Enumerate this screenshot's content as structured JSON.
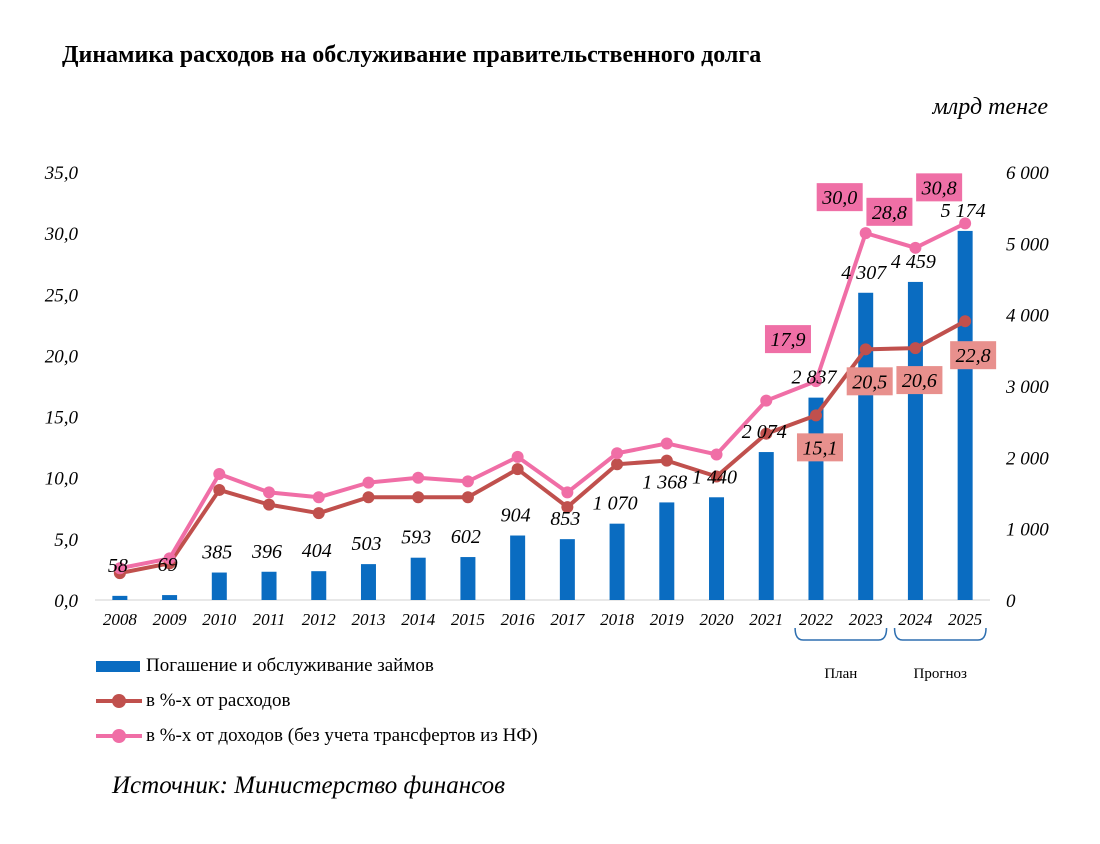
{
  "header": {
    "title": "Динамика расходов на обслуживание правительственного долга",
    "unit": "млрд тенге"
  },
  "chart_data": {
    "type": "bar",
    "categories": [
      "2008",
      "2009",
      "2010",
      "2011",
      "2012",
      "2013",
      "2014",
      "2015",
      "2016",
      "2017",
      "2018",
      "2019",
      "2020",
      "2021",
      "2022",
      "2023",
      "2024",
      "2025"
    ],
    "left_axis": {
      "ticks": [
        "0,0",
        "5,0",
        "10,0",
        "15,0",
        "20,0",
        "25,0",
        "30,0",
        "35,0"
      ],
      "ylim": [
        0,
        35
      ]
    },
    "right_axis": {
      "ticks": [
        "0",
        "1 000",
        "2 000",
        "3 000",
        "4 000",
        "5 000",
        "6 000"
      ],
      "ylim": [
        0,
        6000
      ]
    },
    "series": [
      {
        "name": "Погашение и обслуживание займов",
        "type": "bar",
        "axis": "right",
        "color": "#0a6cc1",
        "values": [
          58,
          69,
          385,
          396,
          404,
          503,
          593,
          602,
          904,
          853,
          1070,
          1368,
          1440,
          2074,
          2837,
          4307,
          4459,
          5174
        ],
        "labels": [
          "58",
          "69",
          "385",
          "396",
          "404",
          "503",
          "593",
          "602",
          "904",
          "853",
          "1 070",
          "1 368",
          "1 440",
          "2 074",
          "2 837",
          "4 307",
          "4 459",
          "5 174"
        ]
      },
      {
        "name": "в %-х от расходов",
        "type": "line",
        "axis": "left",
        "color": "#c0504d",
        "values": [
          2.2,
          3.0,
          9.0,
          7.8,
          7.1,
          8.4,
          8.4,
          8.4,
          10.7,
          7.6,
          11.1,
          11.4,
          10.1,
          13.6,
          15.1,
          20.5,
          20.6,
          22.8
        ],
        "shown_labels": {
          "14": "15,1",
          "15": "20,5",
          "16": "20,6",
          "17": "22,8"
        }
      },
      {
        "name": "в %-х от доходов (без учета трансфертов из НФ)",
        "type": "line",
        "axis": "left",
        "color": "#f06ea6",
        "values": [
          2.6,
          3.4,
          10.3,
          8.8,
          8.4,
          9.6,
          10.0,
          9.7,
          11.7,
          8.8,
          12.0,
          12.8,
          11.9,
          16.3,
          17.9,
          30.0,
          28.8,
          30.8
        ],
        "shown_labels": {
          "14": "17,9",
          "15": "30,0",
          "16": "28,8",
          "17": "30,8"
        }
      }
    ],
    "groups": [
      {
        "label": "План",
        "from": 14,
        "to": 15
      },
      {
        "label": "Прогноз",
        "from": 16,
        "to": 17
      }
    ]
  },
  "source": "Источник: Министерство финансов"
}
